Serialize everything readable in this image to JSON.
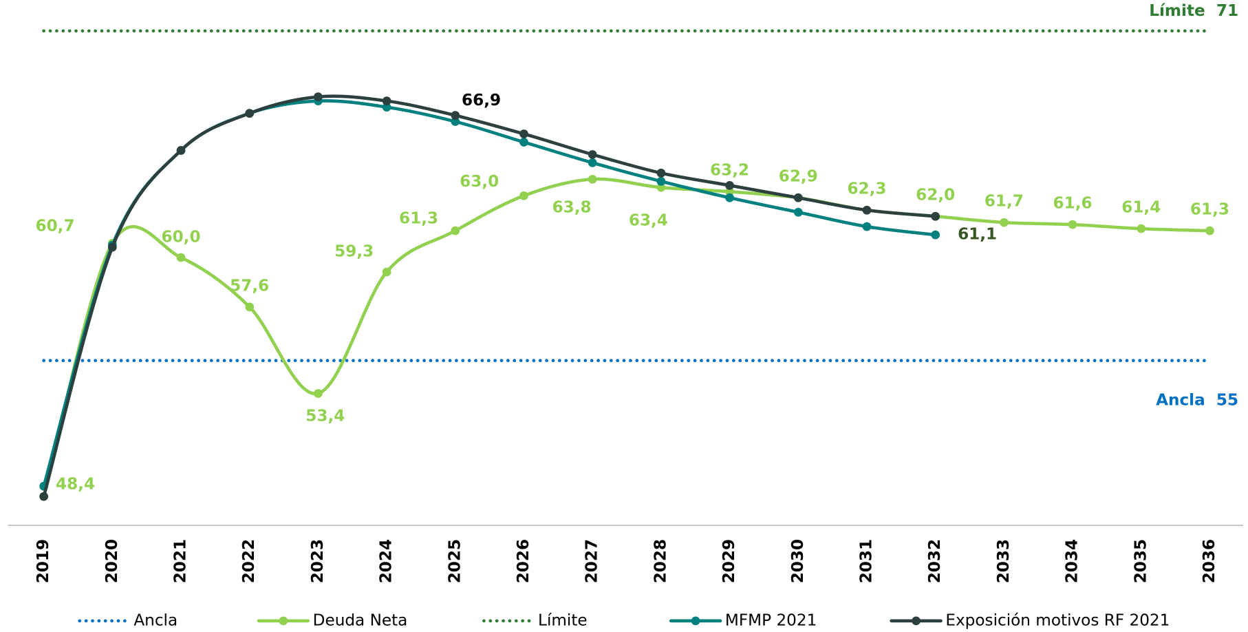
{
  "chart_data": {
    "type": "line",
    "categories": [
      "2019",
      "2020",
      "2021",
      "2022",
      "2023",
      "2024",
      "2025",
      "2026",
      "2027",
      "2028",
      "2029",
      "2030",
      "2031",
      "2032",
      "2033",
      "2034",
      "2035",
      "2036"
    ],
    "ylim": [
      47,
      72.5
    ],
    "series": [
      {
        "name": "Ancla",
        "color": "#0070c0",
        "style": "dotted",
        "values": [
          55,
          55,
          55,
          55,
          55,
          55,
          55,
          55,
          55,
          55,
          55,
          55,
          55,
          55,
          55,
          55,
          55,
          55
        ]
      },
      {
        "name": "Deuda Neta",
        "color": "#92d050",
        "style": "solid",
        "label_color": "#92d050",
        "values": [
          48.4,
          60.7,
          60.0,
          57.6,
          53.4,
          59.3,
          61.3,
          63.0,
          63.8,
          63.4,
          63.2,
          62.9,
          62.3,
          62.0,
          61.7,
          61.6,
          61.4,
          61.3
        ],
        "value_labels": [
          "48,4",
          "60,7",
          "60,0",
          "57,6",
          "53,4",
          "59,3",
          "61,3",
          "63,0",
          "63,8",
          "63,4",
          "63,2",
          "62,9",
          "62,3",
          "62,0",
          "61,7",
          "61,6",
          "61,4",
          "61,3"
        ]
      },
      {
        "name": "Límite",
        "color": "#2e7d32",
        "style": "dotted",
        "values": [
          71,
          71,
          71,
          71,
          71,
          71,
          71,
          71,
          71,
          71,
          71,
          71,
          71,
          71,
          71,
          71,
          71,
          71
        ]
      },
      {
        "name": "MFMP 2021",
        "color": "#00807f",
        "style": "solid",
        "label_color": "#375623",
        "values": [
          48.9,
          60.6,
          65.2,
          67.0,
          67.6,
          67.3,
          66.6,
          65.6,
          64.6,
          63.7,
          62.9,
          62.2,
          61.5,
          61.1,
          null,
          null,
          null,
          null
        ],
        "value_labels": [
          null,
          null,
          null,
          null,
          null,
          null,
          null,
          null,
          null,
          null,
          null,
          null,
          null,
          "61,1",
          null,
          null,
          null,
          null
        ]
      },
      {
        "name": "Exposición motivos RF 2021",
        "color": "#2d4040",
        "style": "solid",
        "label_color": "#000000",
        "values": [
          48.4,
          60.5,
          65.2,
          67.0,
          67.8,
          67.6,
          66.9,
          66.0,
          65.0,
          64.1,
          63.5,
          62.9,
          62.3,
          62.0,
          null,
          null,
          null,
          null
        ],
        "value_labels": [
          null,
          null,
          null,
          null,
          null,
          null,
          "66,9",
          null,
          null,
          null,
          null,
          null,
          null,
          null,
          null,
          null,
          null,
          null
        ]
      }
    ]
  }
}
